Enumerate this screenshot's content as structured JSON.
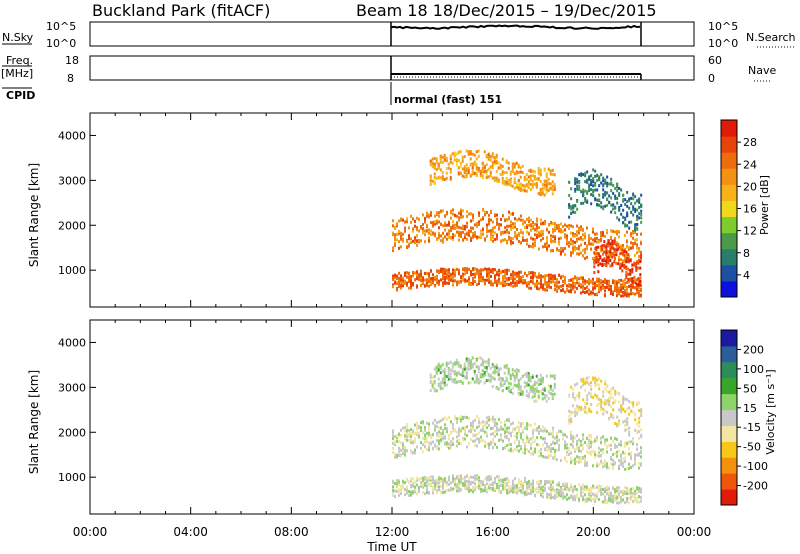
{
  "header": {
    "station": "Buckland Park (fitACF)",
    "beam_date": "Beam 18  18/Dec/2015 – 19/Dec/2015"
  },
  "panels": {
    "nsky": {
      "label": "N.Sky",
      "tick_top": "10^5",
      "tick_bottom": "10^0",
      "right_top": "10^5",
      "right_bottom": "10^0",
      "right_label": "N.Search"
    },
    "freq": {
      "label": "Freq.",
      "units": "[MHz]",
      "tick_top": "18",
      "tick_bottom": "8",
      "right_top": "60",
      "right_bottom": "0",
      "right_label": "Nave"
    },
    "cpid": {
      "label": "CPID",
      "mode_text": "normal (fast) 151"
    }
  },
  "colors": {
    "power_scale": [
      "#0b10dd",
      "#1d50a4",
      "#2a7d6a",
      "#4b9a48",
      "#7fcc2e",
      "#f0d81a",
      "#f7b21a",
      "#f39112",
      "#ee6b0e",
      "#e8430b",
      "#e01b08"
    ],
    "velocity_scale": [
      "#e01b08",
      "#f0560b",
      "#f5900f",
      "#f7c817",
      "#f3e6a0",
      "#c8c8c8",
      "#8fd46a",
      "#3aa52b",
      "#2d8d5a",
      "#2b5e9a",
      "#1b1aa0"
    ]
  },
  "chart_data": [
    {
      "type": "heatmap",
      "title": "",
      "xlabel": "",
      "ylabel": "Slant Range [km]",
      "xlim": [
        "00:00",
        "24:00"
      ],
      "ylim": [
        180,
        4500
      ],
      "yticks": [
        "4000",
        "3000",
        "2000",
        "1000"
      ],
      "data_span_hours": [
        12.0,
        21.9
      ],
      "colorbar": {
        "label": "Power [dB]",
        "ticks": [
          "28",
          "24",
          "20",
          "16",
          "12",
          "8",
          "4"
        ],
        "range": [
          0,
          32
        ]
      },
      "echo_bands": [
        {
          "start_h": 12.0,
          "end_h": 21.9,
          "range_km": [
            580,
            950
          ],
          "power_db": 26
        },
        {
          "start_h": 12.0,
          "end_h": 21.9,
          "range_km": [
            1450,
            2150
          ],
          "power_db": 24
        },
        {
          "start_h": 13.5,
          "end_h": 18.5,
          "range_km": [
            2900,
            3500
          ],
          "power_db": 21
        },
        {
          "start_h": 19.0,
          "end_h": 21.9,
          "range_km": [
            2200,
            3000
          ],
          "power_db": 6
        },
        {
          "start_h": 20.0,
          "end_h": 21.9,
          "range_km": [
            900,
            1500
          ],
          "power_db": 30
        }
      ]
    },
    {
      "type": "heatmap",
      "title": "",
      "xlabel": "Time UT",
      "ylabel": "Slant Range [km]",
      "xlim": [
        "00:00",
        "24:00"
      ],
      "ylim": [
        180,
        4500
      ],
      "xticks": [
        "00:00",
        "04:00",
        "08:00",
        "12:00",
        "16:00",
        "20:00",
        "00:00"
      ],
      "yticks": [
        "4000",
        "3000",
        "2000",
        "1000"
      ],
      "data_span_hours": [
        12.0,
        21.9
      ],
      "colorbar": {
        "label": "Velocity [m s⁻¹]",
        "ticks": [
          "200",
          "100",
          "50",
          "15",
          "-15",
          "-50",
          "-100",
          "-200"
        ],
        "range": [
          -250,
          250
        ]
      },
      "echo_bands": [
        {
          "start_h": 12.0,
          "end_h": 21.9,
          "range_km": [
            580,
            950
          ],
          "velocity_ms": 0
        },
        {
          "start_h": 12.0,
          "end_h": 21.9,
          "range_km": [
            1450,
            2150
          ],
          "velocity_ms": -5
        },
        {
          "start_h": 13.5,
          "end_h": 18.5,
          "range_km": [
            2900,
            3500
          ],
          "velocity_ms": 30
        },
        {
          "start_h": 19.0,
          "end_h": 21.9,
          "range_km": [
            2200,
            3000
          ],
          "velocity_ms": -40
        }
      ]
    }
  ]
}
